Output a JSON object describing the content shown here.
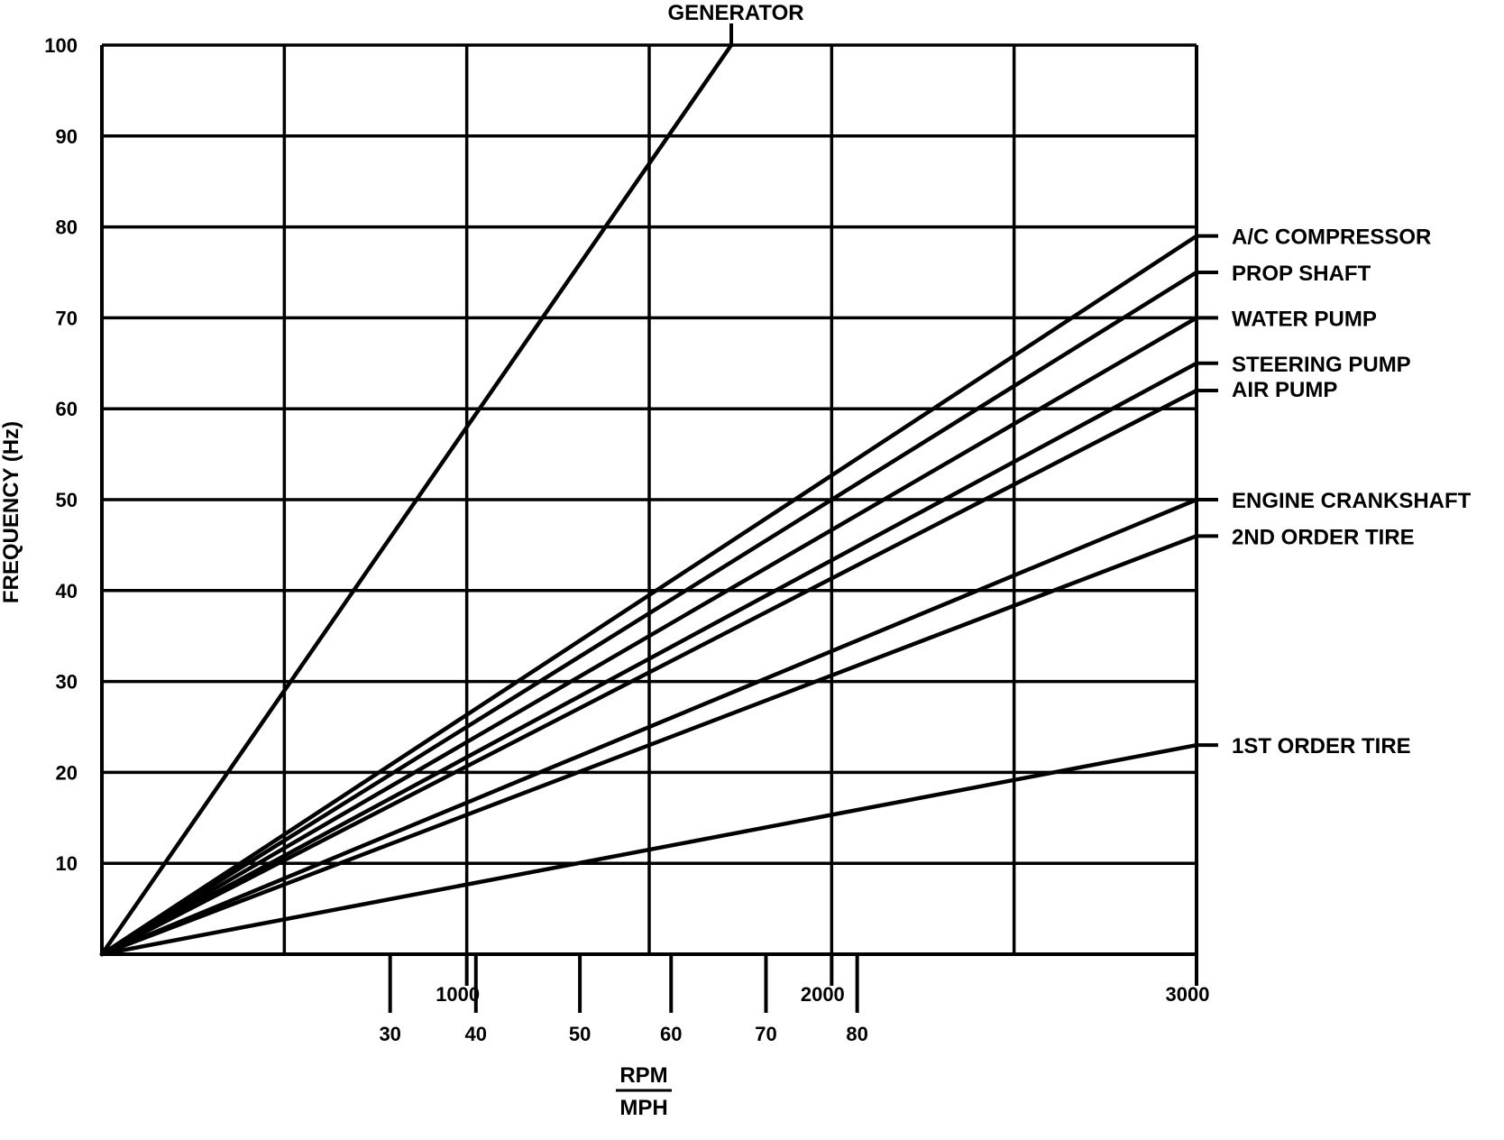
{
  "chart_data": {
    "type": "line",
    "title": "",
    "ylabel": "FREQUENCY (Hz)",
    "xlabel_top": "RPM",
    "xlabel_bottom": "MPH",
    "ylim": [
      0,
      100
    ],
    "xlim_rpm": [
      0,
      3000
    ],
    "y_ticks": [
      10,
      20,
      30,
      40,
      50,
      60,
      70,
      80,
      90,
      100
    ],
    "x_ticks_rpm": [
      {
        "value": 1000,
        "label": "1000"
      },
      {
        "value": 2000,
        "label": "2000"
      },
      {
        "value": 3000,
        "label": "3000"
      }
    ],
    "x_ticks_mph": [
      {
        "value": 30,
        "rpm": 790,
        "label": "30"
      },
      {
        "value": 40,
        "rpm": 1025,
        "label": "40"
      },
      {
        "value": 50,
        "rpm": 1310,
        "label": "50"
      },
      {
        "value": 60,
        "rpm": 1560,
        "label": "60"
      },
      {
        "value": 70,
        "rpm": 1820,
        "label": "70"
      },
      {
        "value": 80,
        "rpm": 2070,
        "label": "80"
      }
    ],
    "grid": true,
    "series": [
      {
        "name": "GENERATOR",
        "points": [
          [
            0,
            0
          ],
          [
            1725,
            100
          ]
        ],
        "label_pos": "top"
      },
      {
        "name": "A/C COMPRESSOR",
        "points": [
          [
            0,
            0
          ],
          [
            3000,
            79
          ]
        ],
        "label_pos": "right"
      },
      {
        "name": "PROP SHAFT",
        "points": [
          [
            0,
            0
          ],
          [
            3000,
            75
          ]
        ],
        "label_pos": "right"
      },
      {
        "name": "WATER PUMP",
        "points": [
          [
            0,
            0
          ],
          [
            3000,
            70
          ]
        ],
        "label_pos": "right"
      },
      {
        "name": "STEERING PUMP",
        "points": [
          [
            0,
            0
          ],
          [
            3000,
            65
          ]
        ],
        "label_pos": "right"
      },
      {
        "name": "AIR PUMP",
        "points": [
          [
            0,
            0
          ],
          [
            3000,
            62
          ]
        ],
        "label_pos": "right"
      },
      {
        "name": "ENGINE CRANKSHAFT",
        "points": [
          [
            0,
            0
          ],
          [
            3000,
            50
          ]
        ],
        "label_pos": "right"
      },
      {
        "name": "2ND ORDER TIRE",
        "points": [
          [
            0,
            0
          ],
          [
            3000,
            46
          ]
        ],
        "label_pos": "right"
      },
      {
        "name": "1ST ORDER TIRE",
        "points": [
          [
            0,
            0
          ],
          [
            3000,
            23
          ]
        ],
        "label_pos": "right"
      }
    ]
  }
}
